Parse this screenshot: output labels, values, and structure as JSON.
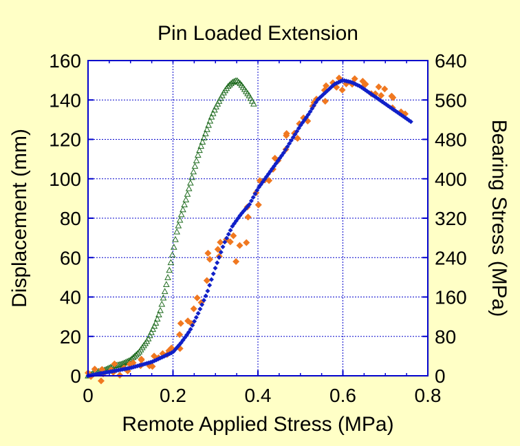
{
  "colors": {
    "background": "#ffffc6",
    "plot_background": "#ffffff",
    "frame": "#0000cc",
    "grid": "#0000cc",
    "series_green": "#1f6b1f",
    "series_orange": "#f07820",
    "series_blue": "#1020c8"
  },
  "chart_data": {
    "type": "scatter",
    "title": "Pin Loaded Extension",
    "xlabel": "Remote Applied Stress (MPa)",
    "ylabel": "Displacement (mm)",
    "y2label": "Bearing Stress (MPa)",
    "xlim": [
      0,
      0.8
    ],
    "ylim": [
      0,
      160
    ],
    "y2lim": [
      0,
      640
    ],
    "xticks": [
      "0",
      "0.2",
      "0.4",
      "0.6",
      "0.8"
    ],
    "yticks": [
      "0",
      "20",
      "40",
      "60",
      "80",
      "100",
      "120",
      "140",
      "160"
    ],
    "y2ticks": [
      "0",
      "80",
      "160",
      "240",
      "320",
      "400",
      "480",
      "560",
      "640"
    ],
    "grid": true,
    "series": [
      {
        "marker": "open-triangle",
        "color": "#1f6b1f",
        "axis": "left",
        "x": [
          0.0,
          0.02,
          0.04,
          0.06,
          0.08,
          0.1,
          0.12,
          0.14,
          0.16,
          0.17,
          0.18,
          0.19,
          0.2,
          0.21,
          0.22,
          0.23,
          0.24,
          0.25,
          0.26,
          0.27,
          0.28,
          0.29,
          0.3,
          0.31,
          0.32,
          0.33,
          0.34,
          0.35,
          0.36,
          0.37,
          0.38,
          0.39
        ],
        "y": [
          0,
          2,
          3,
          5,
          6,
          8,
          12,
          18,
          27,
          33,
          42,
          52,
          63,
          74,
          82,
          89,
          97,
          105,
          113,
          119,
          125,
          131,
          136,
          140,
          144,
          147,
          149,
          150,
          148,
          145,
          142,
          138
        ]
      },
      {
        "marker": "diamond",
        "color": "#f07820",
        "axis": "left",
        "x": [
          0.0,
          0.03,
          0.06,
          0.09,
          0.12,
          0.15,
          0.18,
          0.2,
          0.22,
          0.24,
          0.26,
          0.27,
          0.28,
          0.29,
          0.3,
          0.32,
          0.33,
          0.34,
          0.35,
          0.36,
          0.37,
          0.38,
          0.4,
          0.42,
          0.44,
          0.45,
          0.47,
          0.5,
          0.52,
          0.54,
          0.56,
          0.58,
          0.62,
          0.66,
          0.7,
          0.73,
          0.75
        ],
        "y": [
          0,
          1,
          3,
          4,
          6,
          8,
          10,
          14,
          22,
          28,
          38,
          45,
          54,
          60,
          62,
          68,
          72,
          70,
          63,
          58,
          75,
          85,
          92,
          100,
          108,
          112,
          120,
          127,
          133,
          140,
          145,
          148,
          149,
          147,
          143,
          137,
          130
        ]
      },
      {
        "marker": "diamond",
        "color": "#1020c8",
        "axis": "left",
        "x": [
          0.0,
          0.05,
          0.1,
          0.15,
          0.2,
          0.22,
          0.24,
          0.26,
          0.28,
          0.3,
          0.32,
          0.34,
          0.36,
          0.38,
          0.4,
          0.42,
          0.44,
          0.46,
          0.48,
          0.5,
          0.52,
          0.54,
          0.56,
          0.58,
          0.6,
          0.62,
          0.64,
          0.66,
          0.68,
          0.7,
          0.72,
          0.74,
          0.76
        ],
        "y": [
          0,
          2,
          4,
          7,
          12,
          17,
          23,
          32,
          42,
          55,
          67,
          76,
          82,
          87,
          95,
          101,
          107,
          113,
          120,
          127,
          133,
          140,
          144,
          148,
          150,
          149,
          147,
          144,
          141,
          138,
          135,
          132,
          129
        ]
      }
    ]
  }
}
